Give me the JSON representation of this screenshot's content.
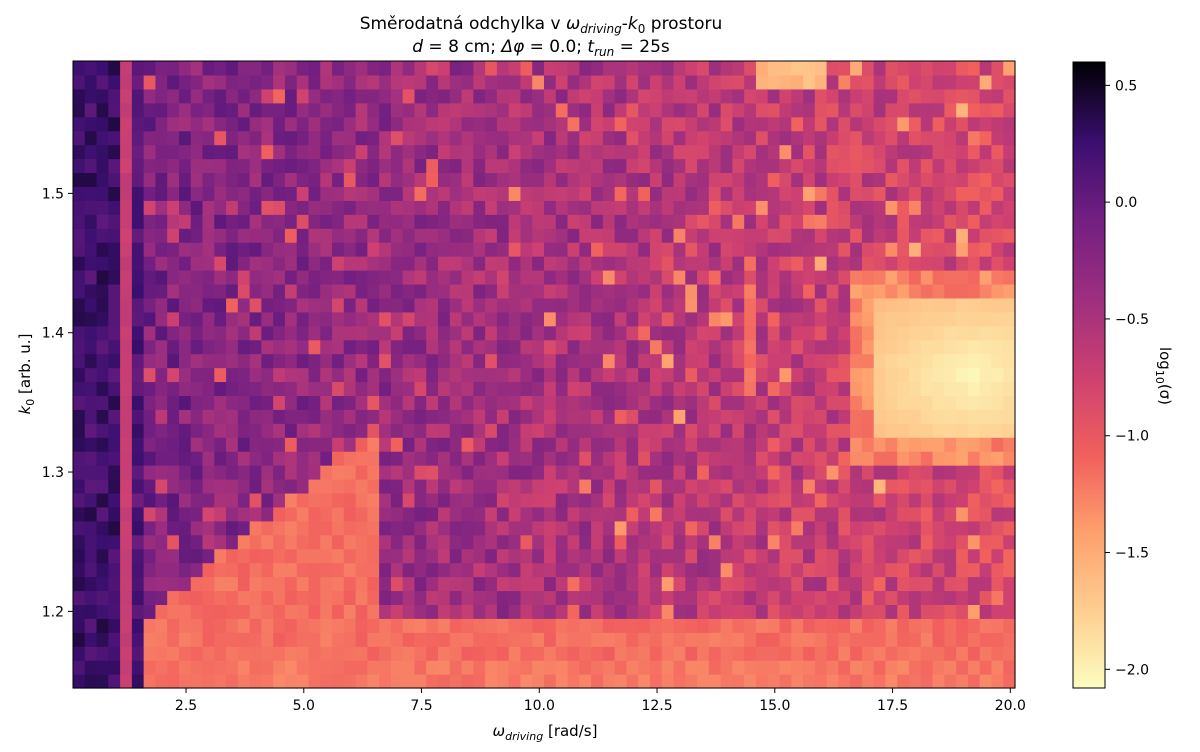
{
  "chart_data": {
    "type": "heatmap",
    "title": {
      "line1": {
        "prefix": "Směrodatná odchylka v ",
        "omega": "ω",
        "omega_sub": "driving",
        "dash": "-",
        "k": "k",
        "k_sub": "0",
        "suffix": " prostoru"
      },
      "line2": {
        "d": "d",
        "d_val": " = 8 cm; ",
        "phi": "Δφ",
        "phi_val": " = 0.0; ",
        "t": "t",
        "t_sub": "run",
        "t_val": " = 25s"
      }
    },
    "xlabel": {
      "symbol": "ω",
      "sub": "driving",
      "unit": " [rad/s]"
    },
    "ylabel": {
      "symbol": "k",
      "sub": "0",
      "unit": " [arb. u.]"
    },
    "colorbar_label": {
      "prefix": "log",
      "sub": "10",
      "suffix": "(σ)"
    },
    "xlim": [
      0.1,
      20.1
    ],
    "ylim": [
      1.145,
      1.595
    ],
    "x_ticks": [
      {
        "value": 2.5,
        "label": "2.5"
      },
      {
        "value": 5.0,
        "label": "5.0"
      },
      {
        "value": 7.5,
        "label": "7.5"
      },
      {
        "value": 10.0,
        "label": "10.0"
      },
      {
        "value": 12.5,
        "label": "12.5"
      },
      {
        "value": 15.0,
        "label": "15.0"
      },
      {
        "value": 17.5,
        "label": "17.5"
      },
      {
        "value": 20.0,
        "label": "20.0"
      }
    ],
    "y_ticks": [
      {
        "value": 1.2,
        "label": "1.2"
      },
      {
        "value": 1.3,
        "label": "1.3"
      },
      {
        "value": 1.4,
        "label": "1.4"
      },
      {
        "value": 1.5,
        "label": "1.5"
      }
    ],
    "colorbar": {
      "range": [
        -2.08,
        0.6
      ],
      "ticks": [
        {
          "value": 0.5,
          "label": "0.5"
        },
        {
          "value": 0.0,
          "label": "0.0"
        },
        {
          "value": -0.5,
          "label": "−0.5"
        },
        {
          "value": -1.0,
          "label": "−1.0"
        },
        {
          "value": -1.5,
          "label": "−1.5"
        },
        {
          "value": -2.0,
          "label": "−2.0"
        }
      ],
      "colormap": "magma_r"
    },
    "grid": false,
    "approximate_structure": {
      "description_note": "Cells are log10(sigma) values estimated from the image; low-omega region dark (~0.2), bright plateau near omega 17.5-20, k0 1.32-1.42 (~-2.0), lower band k0<1.2 moderate (~-1.2)",
      "x_cells": 80,
      "y_cells": 45
    }
  }
}
